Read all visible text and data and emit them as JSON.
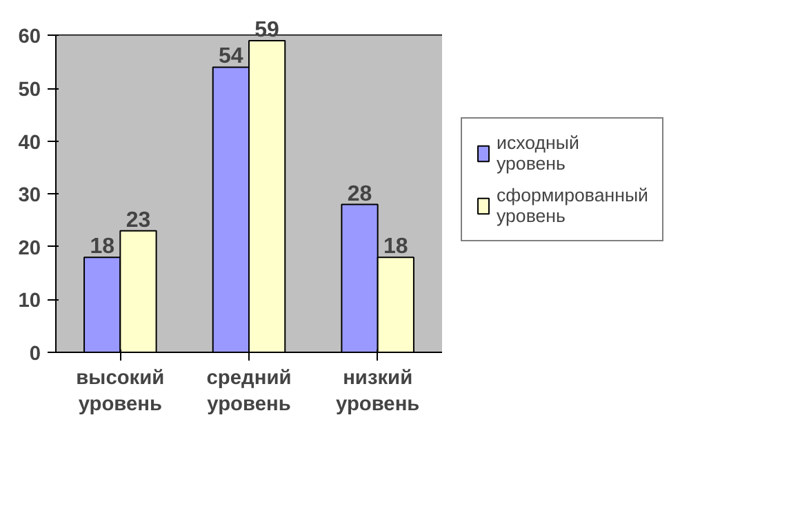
{
  "chart_data": {
    "type": "bar",
    "categories": [
      "высокий уровень",
      "средний уровень",
      "низкий уровень"
    ],
    "series": [
      {
        "name": "исходный уровень",
        "color": "#9999ff",
        "values": [
          18,
          54,
          28
        ]
      },
      {
        "name": "сформированный уровень",
        "color": "#ffffcc",
        "values": [
          23,
          59,
          18
        ]
      }
    ],
    "ylim": [
      0,
      60
    ],
    "yticks": [
      0,
      10,
      20,
      30,
      40,
      50,
      60
    ],
    "grid": "y",
    "legend": "right",
    "data_labels": true
  }
}
